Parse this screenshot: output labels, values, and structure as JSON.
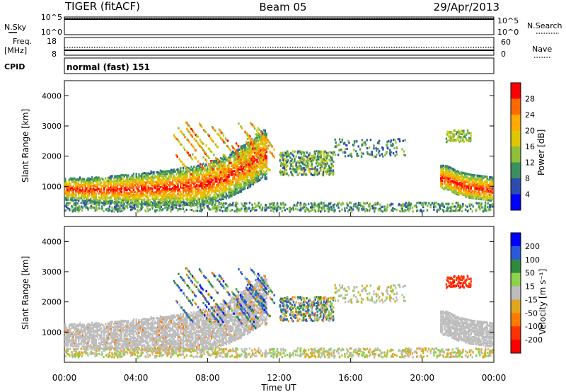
{
  "header": {
    "station": "TIGER (fitACF)",
    "beam": "Beam 05",
    "date": "29/Apr/2013"
  },
  "top_panels": {
    "nsky_label": "N.Sky",
    "nsearch_label": "N.Search",
    "freq_label_1": "Freq.",
    "freq_label_2": "[MHz]",
    "nave_label": "Nave",
    "cpid_label": "CPID",
    "cpid_text": "normal (fast) 151",
    "noise_ticks": [
      "10^5",
      "10^0"
    ],
    "freq_ticks": [
      "18",
      "8"
    ],
    "nave_ticks": [
      "60",
      "0"
    ]
  },
  "power_colorbar": {
    "label": "Power [dB]",
    "ticks": [
      "28",
      "24",
      "20",
      "16",
      "12",
      "8",
      "4"
    ],
    "colors": [
      "#ff0000",
      "#ff6a00",
      "#ffaa00",
      "#ddc800",
      "#8fbe3a",
      "#3b8f60",
      "#2d4cb0",
      "#0000ff"
    ]
  },
  "velocity_colorbar": {
    "label": "Velocity [m s⁻¹]",
    "ticks": [
      "200",
      "100",
      "50",
      "15",
      "-15",
      "-50",
      "-100",
      "-200"
    ],
    "colors": [
      "#0000ff",
      "#2b5ad8",
      "#2e8b3e",
      "#8ed14b",
      "#bdbdbd",
      "#e1a620",
      "#ff7a00",
      "#ff3300",
      "#ff0000"
    ]
  },
  "chart_data": [
    {
      "type": "heatmap",
      "panel": "power",
      "ylabel": "Slant Range [km]",
      "yticks": [
        "4000",
        "3000",
        "2000",
        "1000"
      ],
      "ylim": [
        0,
        4500
      ],
      "xlim": [
        0,
        24
      ],
      "bands": [
        {
          "x": [
            0,
            1,
            2,
            3,
            4,
            5,
            6,
            7,
            8,
            9,
            10,
            11
          ],
          "y": [
            950,
            930,
            920,
            930,
            950,
            970,
            1000,
            1050,
            1150,
            1350,
            1650,
            2100
          ],
          "value": "28"
        },
        {
          "x": [
            21.3,
            22,
            22.7,
            23.4,
            24
          ],
          "y": [
            1300,
            1100,
            1000,
            950,
            900
          ],
          "value": "28"
        },
        {
          "x": [
            13,
            13.7,
            14.4
          ],
          "y": [
            1800,
            1600,
            1700
          ],
          "value": "12"
        }
      ],
      "echo_regions": [
        {
          "name": "main band",
          "x_range": [
            0,
            11
          ],
          "range_km": [
            700,
            1900
          ],
          "power_db": [
            4,
            28
          ]
        },
        {
          "name": "high range streaks",
          "x_range": [
            6,
            11.5
          ],
          "range_km": [
            1800,
            3500
          ],
          "power_db": [
            8,
            28
          ]
        },
        {
          "name": "evening band",
          "x_range": [
            21,
            24
          ],
          "range_km": [
            700,
            1700
          ],
          "power_db": [
            4,
            28
          ]
        },
        {
          "name": "ground scatter near range",
          "x_range": [
            0,
            24
          ],
          "range_km": [
            200,
            500
          ],
          "power_db": [
            4,
            12
          ]
        }
      ]
    },
    {
      "type": "heatmap",
      "panel": "velocity",
      "ylabel": "Slant Range [km]",
      "yticks": [
        "4000",
        "3000",
        "2000",
        "1000"
      ],
      "xlabel": "Time UT",
      "xticks": [
        "00:00",
        "04:00",
        "08:00",
        "12:00",
        "16:00",
        "20:00",
        "00:00"
      ],
      "ylim": [
        0,
        4500
      ],
      "xlim": [
        0,
        24
      ],
      "echo_regions": [
        {
          "name": "ground scatter band",
          "x_range": [
            0,
            11
          ],
          "range_km": [
            700,
            1900
          ],
          "velocity_ms": [
            -15,
            15
          ]
        },
        {
          "name": "high range flows",
          "x_range": [
            7,
            11.8
          ],
          "range_km": [
            1800,
            3500
          ],
          "velocity_ms": [
            50,
            200
          ]
        },
        {
          "name": "evening ground scatter",
          "x_range": [
            21,
            24
          ],
          "range_km": [
            700,
            1700
          ],
          "velocity_ms": [
            -15,
            15
          ]
        },
        {
          "name": "evening receding echoes",
          "x_range": [
            21.3,
            22.7
          ],
          "range_km": [
            2500,
            2900
          ],
          "velocity_ms": [
            -200,
            -100
          ]
        }
      ]
    }
  ]
}
